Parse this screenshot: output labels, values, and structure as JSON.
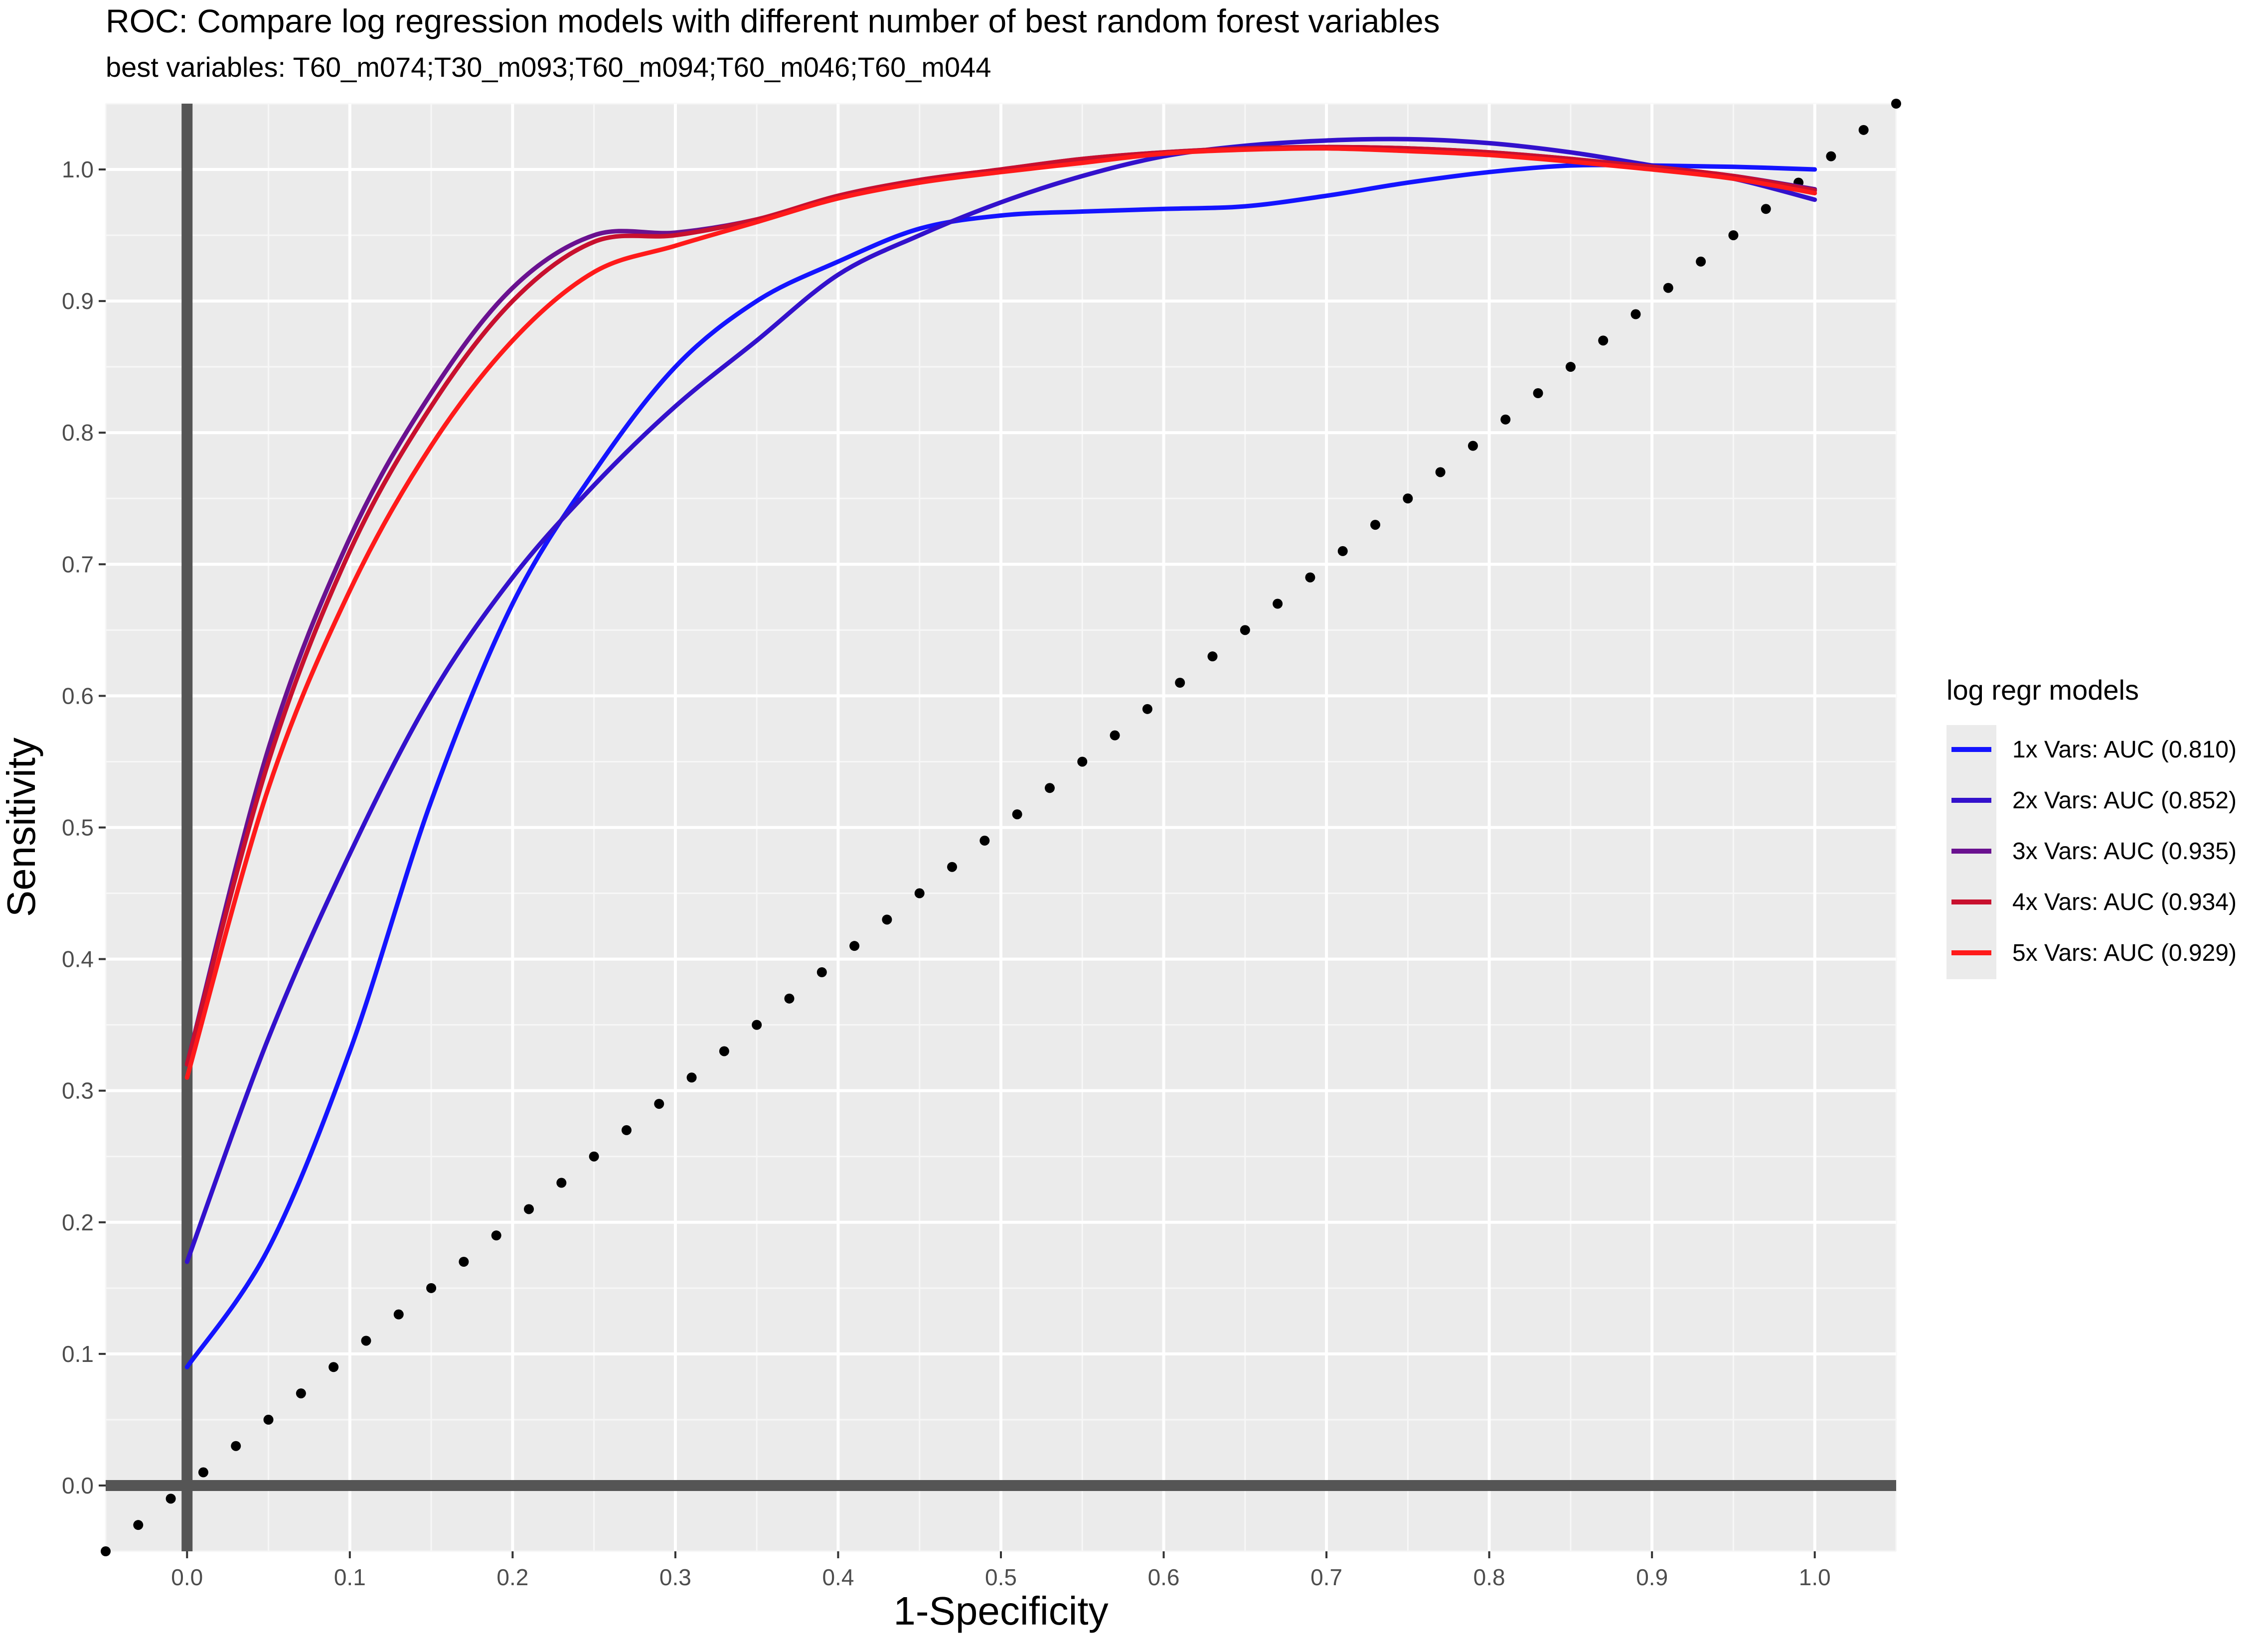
{
  "chart_data": {
    "type": "line",
    "title": "ROC: Compare log regression models with different number of best random forest variables",
    "subtitle": "best variables:  T60_m074;T30_m093;T60_m094;T60_m046;T60_m044",
    "xlabel": "1-Specificity",
    "ylabel": "Sensitivity",
    "xlim": [
      -0.05,
      1.05
    ],
    "ylim": [
      -0.05,
      1.05
    ],
    "x_ticks": [
      "0.0",
      "0.1",
      "0.2",
      "0.3",
      "0.4",
      "0.5",
      "0.6",
      "0.7",
      "0.8",
      "0.9",
      "1.0"
    ],
    "y_ticks": [
      "0.0",
      "0.1",
      "0.2",
      "0.3",
      "0.4",
      "0.5",
      "0.6",
      "0.7",
      "0.8",
      "0.9",
      "1.0"
    ],
    "grid": true,
    "legend_title": "log regr models",
    "legend_position": "right",
    "reference_lines": {
      "x": 0,
      "y": 0,
      "diagonal": "y = x (dotted)"
    },
    "series": [
      {
        "name": "1x Vars: AUC (0.810)",
        "color": "#1414ff",
        "x": [
          0.0,
          0.05,
          0.1,
          0.15,
          0.2,
          0.25,
          0.3,
          0.35,
          0.4,
          0.45,
          0.5,
          0.55,
          0.6,
          0.65,
          0.7,
          0.75,
          0.8,
          0.85,
          0.9,
          0.95,
          1.0
        ],
        "y": [
          0.09,
          0.18,
          0.33,
          0.52,
          0.67,
          0.77,
          0.85,
          0.9,
          0.93,
          0.955,
          0.965,
          0.968,
          0.97,
          0.972,
          0.98,
          0.99,
          0.998,
          1.003,
          1.003,
          1.002,
          1.0
        ]
      },
      {
        "name": "2x Vars: AUC (0.852)",
        "color": "#3311cc",
        "x": [
          0.0,
          0.05,
          0.1,
          0.15,
          0.2,
          0.25,
          0.3,
          0.35,
          0.4,
          0.45,
          0.5,
          0.55,
          0.6,
          0.65,
          0.7,
          0.75,
          0.8,
          0.85,
          0.9,
          0.95,
          1.0
        ],
        "y": [
          0.17,
          0.34,
          0.48,
          0.6,
          0.69,
          0.76,
          0.82,
          0.87,
          0.92,
          0.95,
          0.975,
          0.995,
          1.01,
          1.018,
          1.022,
          1.023,
          1.02,
          1.013,
          1.003,
          0.993,
          0.977
        ]
      },
      {
        "name": "3x Vars: AUC (0.935)",
        "color": "#6a1190",
        "x": [
          0.0,
          0.05,
          0.1,
          0.15,
          0.2,
          0.25,
          0.3,
          0.35,
          0.4,
          0.45,
          0.5,
          0.55,
          0.6,
          0.65,
          0.7,
          0.75,
          0.8,
          0.85,
          0.9,
          0.95,
          1.0
        ],
        "y": [
          0.32,
          0.56,
          0.72,
          0.83,
          0.91,
          0.95,
          0.952,
          0.962,
          0.98,
          0.992,
          1.0,
          1.008,
          1.013,
          1.016,
          1.017,
          1.016,
          1.013,
          1.008,
          1.002,
          0.995,
          0.985
        ]
      },
      {
        "name": "4x Vars: AUC (0.934)",
        "color": "#c8102e",
        "x": [
          0.0,
          0.05,
          0.1,
          0.15,
          0.2,
          0.25,
          0.3,
          0.35,
          0.4,
          0.45,
          0.5,
          0.55,
          0.6,
          0.65,
          0.7,
          0.75,
          0.8,
          0.85,
          0.9,
          0.95,
          1.0
        ],
        "y": [
          0.32,
          0.55,
          0.71,
          0.82,
          0.9,
          0.945,
          0.95,
          0.962,
          0.98,
          0.992,
          1.0,
          1.008,
          1.013,
          1.016,
          1.017,
          1.016,
          1.013,
          1.008,
          1.002,
          0.995,
          0.984
        ]
      },
      {
        "name": "5x Vars: AUC (0.929)",
        "color": "#ff1a1a",
        "x": [
          0.0,
          0.05,
          0.1,
          0.15,
          0.2,
          0.25,
          0.3,
          0.35,
          0.4,
          0.45,
          0.5,
          0.55,
          0.6,
          0.65,
          0.7,
          0.75,
          0.8,
          0.85,
          0.9,
          0.95,
          1.0
        ],
        "y": [
          0.31,
          0.53,
          0.68,
          0.79,
          0.87,
          0.922,
          0.942,
          0.96,
          0.978,
          0.99,
          0.998,
          1.005,
          1.012,
          1.015,
          1.016,
          1.014,
          1.011,
          1.006,
          1.0,
          0.993,
          0.982
        ]
      }
    ]
  }
}
